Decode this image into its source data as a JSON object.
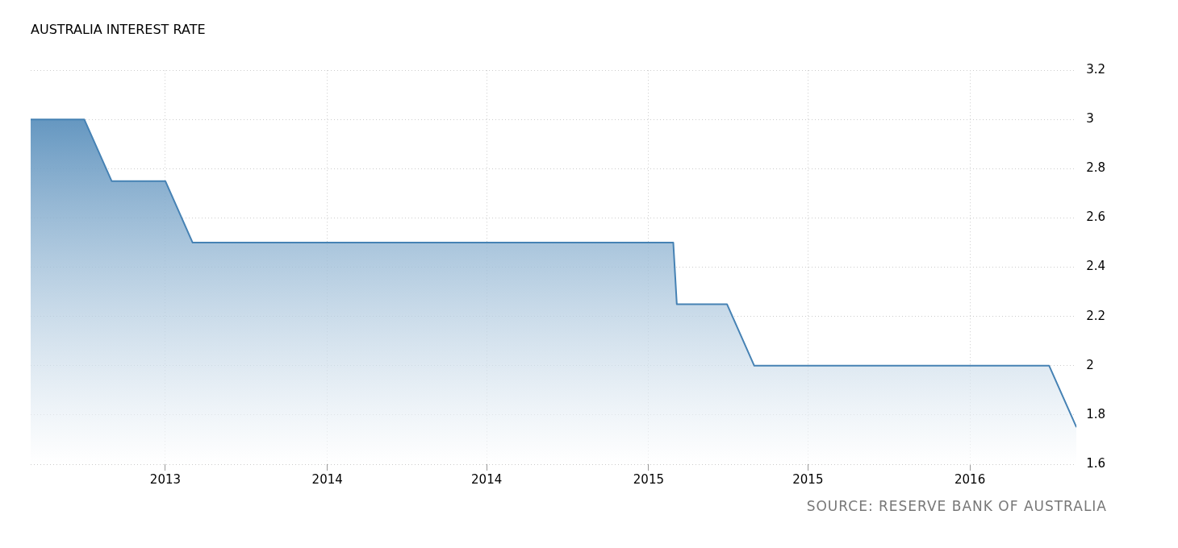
{
  "chart_data": {
    "type": "area",
    "title": "AUSTRALIA INTEREST RATE",
    "x": [
      "2013-03",
      "2013-05",
      "2013-06",
      "2013-08",
      "2013-09",
      "2015-03-01",
      "2015-03-05",
      "2015-05",
      "2015-06",
      "2016-05",
      "2016-06"
    ],
    "series": [
      {
        "color": "#4682b4",
        "values": [
          3,
          3,
          2.75,
          2.75,
          2.5,
          2.5,
          2.25,
          2.25,
          2,
          2,
          1.75
        ]
      }
    ],
    "xlim": [
      "2013-03",
      "2016-06"
    ],
    "xticks": [
      {
        "value": "2013-08",
        "label": "2013"
      },
      {
        "value": "2014-02",
        "label": "2014"
      },
      {
        "value": "2014-08",
        "label": "2014"
      },
      {
        "value": "2015-02",
        "label": "2015"
      },
      {
        "value": "2015-08",
        "label": "2015"
      },
      {
        "value": "2016-02",
        "label": "2016"
      }
    ],
    "ylim": [
      1.6,
      3.2
    ],
    "yticks": [
      1.6,
      1.8,
      2,
      2.2,
      2.4,
      2.6,
      2.8,
      3,
      3.2
    ],
    "grid": true,
    "line_style": "dotted",
    "annotations": [
      "SOURCE: RESERVE BANK OF AUSTRALIA"
    ]
  }
}
